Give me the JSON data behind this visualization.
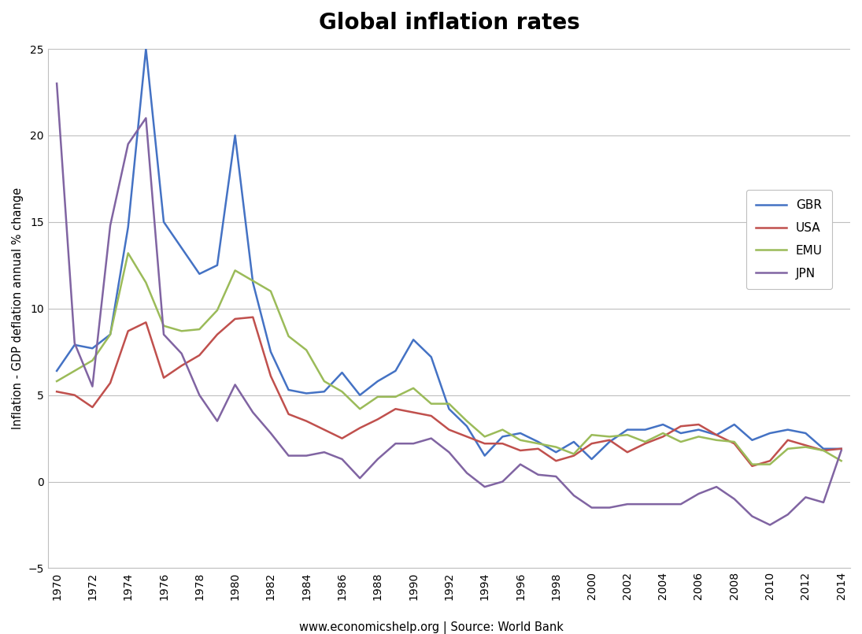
{
  "title": "Global inflation rates",
  "ylabel": "Inflation - GDP deflation annual % change",
  "footnote": "www.economicshelp.org | Source: World Bank",
  "ylim": [
    -5,
    25
  ],
  "yticks": [
    -5,
    0,
    5,
    10,
    15,
    20,
    25
  ],
  "years": [
    1970,
    1971,
    1972,
    1973,
    1974,
    1975,
    1976,
    1977,
    1978,
    1979,
    1980,
    1981,
    1982,
    1983,
    1984,
    1985,
    1986,
    1987,
    1988,
    1989,
    1990,
    1991,
    1992,
    1993,
    1994,
    1995,
    1996,
    1997,
    1998,
    1999,
    2000,
    2001,
    2002,
    2003,
    2004,
    2005,
    2006,
    2007,
    2008,
    2009,
    2010,
    2011,
    2012,
    2013,
    2014
  ],
  "GBR": [
    6.4,
    7.9,
    7.7,
    8.5,
    14.7,
    25.0,
    15.0,
    13.5,
    12.0,
    12.5,
    20.0,
    11.5,
    7.5,
    5.3,
    5.1,
    5.2,
    6.3,
    5.0,
    5.8,
    6.4,
    8.2,
    7.2,
    4.2,
    3.2,
    1.5,
    2.6,
    2.8,
    2.3,
    1.7,
    2.3,
    1.3,
    2.3,
    3.0,
    3.0,
    3.3,
    2.8,
    3.0,
    2.7,
    3.3,
    2.4,
    2.8,
    3.0,
    2.8,
    1.9,
    1.9
  ],
  "USA": [
    5.2,
    5.0,
    4.3,
    5.7,
    8.7,
    9.2,
    6.0,
    6.7,
    7.3,
    8.5,
    9.4,
    9.5,
    6.1,
    3.9,
    3.5,
    3.0,
    2.5,
    3.1,
    3.6,
    4.2,
    4.0,
    3.8,
    3.0,
    2.6,
    2.2,
    2.2,
    1.8,
    1.9,
    1.2,
    1.5,
    2.2,
    2.4,
    1.7,
    2.2,
    2.6,
    3.2,
    3.3,
    2.7,
    2.2,
    0.9,
    1.2,
    2.4,
    2.1,
    1.8,
    1.9
  ],
  "EMU": [
    5.8,
    6.4,
    7.0,
    8.5,
    13.2,
    11.5,
    9.0,
    8.7,
    8.8,
    9.9,
    12.2,
    11.6,
    11.0,
    8.4,
    7.6,
    5.8,
    5.2,
    4.2,
    4.9,
    4.9,
    5.4,
    4.5,
    4.5,
    3.5,
    2.6,
    3.0,
    2.4,
    2.2,
    2.0,
    1.6,
    2.7,
    2.6,
    2.7,
    2.3,
    2.8,
    2.3,
    2.6,
    2.4,
    2.3,
    1.0,
    1.0,
    1.9,
    2.0,
    1.8,
    1.2
  ],
  "JPN": [
    23.0,
    8.0,
    5.5,
    14.8,
    19.5,
    21.0,
    8.5,
    7.4,
    5.0,
    3.5,
    5.6,
    4.0,
    2.8,
    1.5,
    1.5,
    1.7,
    1.3,
    0.2,
    1.3,
    2.2,
    2.2,
    2.5,
    1.7,
    0.5,
    -0.3,
    0.0,
    1.0,
    0.4,
    0.3,
    -0.8,
    -1.5,
    -1.5,
    -1.3,
    -1.3,
    -1.3,
    -1.3,
    -0.7,
    -0.3,
    -1.0,
    -2.0,
    -2.5,
    -1.9,
    -0.9,
    -1.2,
    1.8
  ],
  "GBR_color": "#4472C4",
  "USA_color": "#C0504D",
  "EMU_color": "#9BBB59",
  "JPN_color": "#8064A2",
  "linewidth": 1.8,
  "background_color": "#FFFFFF",
  "grid_color": "#BFBFBF",
  "title_fontsize": 20,
  "axis_label_fontsize": 10.5,
  "tick_fontsize": 10,
  "legend_fontsize": 11,
  "footnote_fontsize": 10.5
}
